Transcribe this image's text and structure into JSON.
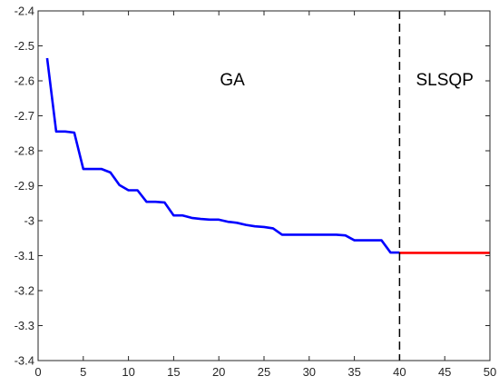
{
  "chart_data": {
    "type": "line",
    "title": "",
    "xlabel": "",
    "ylabel": "",
    "xlim": [
      0,
      50
    ],
    "ylim": [
      -3.4,
      -2.4
    ],
    "y_axis_reversed": true,
    "grid": false,
    "legend": "none",
    "x_ticks": [
      0,
      5,
      10,
      15,
      20,
      25,
      30,
      35,
      40,
      45,
      50
    ],
    "y_ticks": [
      -2.4,
      -2.5,
      -2.6,
      -2.7,
      -2.8,
      -2.9,
      -3,
      -3.1,
      -3.2,
      -3.3,
      -3.4
    ],
    "x_tick_labels": [
      "0",
      "5",
      "10",
      "15",
      "20",
      "25",
      "30",
      "35",
      "40",
      "45",
      "50"
    ],
    "y_tick_labels": [
      "-2.4",
      "-2.5",
      "-2.6",
      "-2.7",
      "-2.8",
      "-2.9",
      "-3",
      "-3.1",
      "-3.2",
      "-3.3",
      "-3.4"
    ],
    "series": [
      {
        "color": "#0000ff",
        "x": [
          1,
          2,
          3,
          4,
          5,
          6,
          7,
          8,
          9,
          10,
          11,
          12,
          13,
          14,
          15,
          16,
          17,
          18,
          19,
          20,
          21,
          22,
          23,
          24,
          25,
          26,
          27,
          28,
          29,
          30,
          31,
          32,
          33,
          34,
          35,
          36,
          37,
          38,
          39,
          40
        ],
        "y": [
          -2.535,
          -2.745,
          -2.745,
          -2.748,
          -2.852,
          -2.852,
          -2.852,
          -2.862,
          -2.898,
          -2.913,
          -2.913,
          -2.946,
          -2.946,
          -2.948,
          -2.985,
          -2.985,
          -2.992,
          -2.995,
          -2.997,
          -2.997,
          -3.003,
          -3.006,
          -3.012,
          -3.016,
          -3.018,
          -3.022,
          -3.04,
          -3.04,
          -3.04,
          -3.04,
          -3.04,
          -3.04,
          -3.04,
          -3.042,
          -3.056,
          -3.056,
          -3.056,
          -3.056,
          -3.091,
          -3.091
        ]
      },
      {
        "color": "#ff0000",
        "x": [
          40,
          50
        ],
        "y": [
          -3.092,
          -3.092
        ]
      }
    ],
    "vline": {
      "x": 40,
      "style": "dashed",
      "color": "#000000"
    },
    "annotations": [
      {
        "text": "GA",
        "x": 21.5,
        "y": -2.595
      },
      {
        "text": "SLSQP",
        "x": 45,
        "y": -2.595
      }
    ]
  }
}
